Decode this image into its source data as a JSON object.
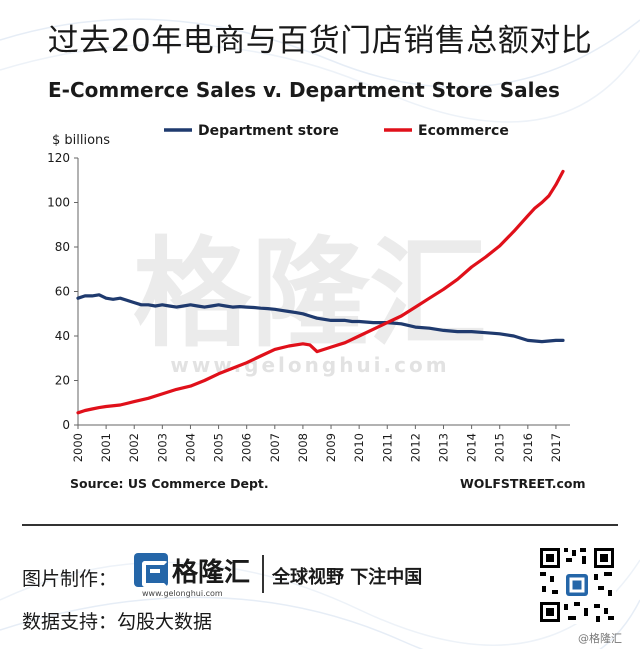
{
  "headline": "过去20年电商与百货门店销售总额对比",
  "watermark": {
    "text": "格隆汇",
    "url": "www.gelonghui.com"
  },
  "chart_data": {
    "type": "line",
    "title": "E-Commerce Sales v. Department Store Sales",
    "ylabel": "$ billions",
    "xlabel": "",
    "ylim": [
      0,
      120
    ],
    "xlim": [
      2000,
      2017.5
    ],
    "yticks": [
      0,
      20,
      40,
      60,
      80,
      100,
      120
    ],
    "xticks": [
      "2000",
      "2001",
      "2002",
      "2003",
      "2004",
      "2005",
      "2006",
      "2007",
      "2008",
      "2009",
      "2010",
      "2011",
      "2012",
      "2013",
      "2014",
      "2015",
      "2016",
      "2017"
    ],
    "grid": false,
    "legend_position": "top",
    "series": [
      {
        "name": "Department store",
        "color": "#1f3a6e",
        "x": [
          2000,
          2000.25,
          2000.5,
          2000.75,
          2001,
          2001.25,
          2001.5,
          2001.75,
          2002,
          2002.25,
          2002.5,
          2002.75,
          2003,
          2003.25,
          2003.5,
          2003.75,
          2004,
          2004.25,
          2004.5,
          2004.75,
          2005,
          2005.25,
          2005.5,
          2005.75,
          2006,
          2006.25,
          2006.5,
          2006.75,
          2007,
          2007.25,
          2007.5,
          2007.75,
          2008,
          2008.25,
          2008.5,
          2008.75,
          2009,
          2009.25,
          2009.5,
          2009.75,
          2010,
          2010.5,
          2011,
          2011.5,
          2012,
          2012.5,
          2013,
          2013.5,
          2014,
          2014.5,
          2015,
          2015.5,
          2016,
          2016.5,
          2017,
          2017.25
        ],
        "y": [
          57,
          58,
          58,
          58.5,
          57,
          56.5,
          57,
          56,
          55,
          54,
          54,
          53.5,
          54,
          53.5,
          53,
          53.5,
          54,
          53.5,
          53,
          53.5,
          54,
          53.5,
          53,
          53.2,
          53,
          52.8,
          52.5,
          52.3,
          52,
          51.5,
          51,
          50.5,
          50,
          49,
          48,
          47.5,
          47,
          47,
          47,
          46.5,
          46.5,
          46,
          46,
          45.5,
          44,
          43.5,
          42.5,
          42,
          42,
          41.5,
          41,
          40,
          38,
          37.5,
          38,
          38
        ]
      },
      {
        "name": "Ecommerce",
        "color": "#e0101a",
        "x": [
          2000,
          2000.25,
          2000.5,
          2000.75,
          2001,
          2001.5,
          2002,
          2002.5,
          2003,
          2003.5,
          2004,
          2004.5,
          2005,
          2005.5,
          2006,
          2006.5,
          2007,
          2007.5,
          2008,
          2008.25,
          2008.5,
          2008.75,
          2009,
          2009.5,
          2010,
          2010.5,
          2011,
          2011.5,
          2012,
          2012.5,
          2013,
          2013.5,
          2014,
          2014.5,
          2015,
          2015.5,
          2016,
          2016.25,
          2016.5,
          2016.75,
          2017,
          2017.25
        ],
        "y": [
          5.5,
          6.5,
          7.2,
          7.8,
          8.3,
          9,
          10.5,
          12,
          14,
          16,
          17.5,
          20,
          23,
          25.5,
          28,
          31,
          34,
          35.5,
          36.5,
          36,
          33,
          34,
          35,
          37,
          40,
          43,
          46,
          49,
          53,
          57,
          61,
          65.5,
          71,
          75.5,
          80.5,
          87,
          94,
          97.5,
          100,
          103,
          108,
          114
        ]
      }
    ]
  },
  "source": "Source: US Commerce Dept.",
  "credit": "WOLFSTREET.com",
  "footer": {
    "made_by_label": "图片制作：",
    "brand_name": "格隆汇",
    "brand_url": "www.gelonghui.com",
    "slogan": "全球视野 下注中国",
    "data_support_label": "数据支持：",
    "data_support_value": "勾股大数据",
    "corner_mark": "@格隆汇"
  },
  "colors": {
    "department_store": "#1f3a6e",
    "ecommerce": "#e0101a",
    "brand": "#2566a8"
  }
}
